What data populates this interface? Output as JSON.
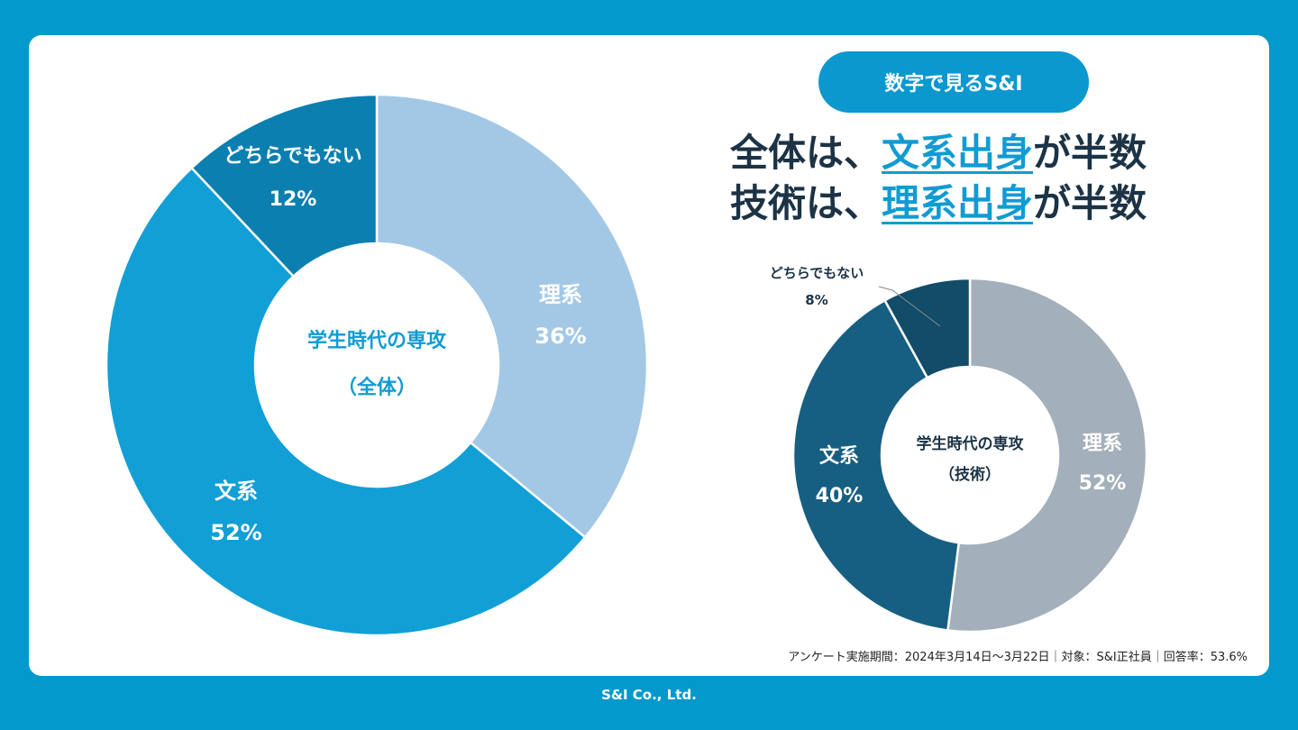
{
  "badge": "数字で見るS&I",
  "headline": {
    "line1": {
      "pre": "全体は、",
      "hl": "文系出身",
      "post": "が半数"
    },
    "line2": {
      "pre": "技術は、",
      "hl": "理系出身",
      "post": "が半数"
    }
  },
  "survey_note": "アンケート実施期間：2024年3月14日〜3月22日｜対象：S&I正社員｜回答率：53.6%",
  "footer": "S&I Co., Ltd.",
  "chart_data": [
    {
      "type": "pie",
      "title": "学生時代の専攻",
      "subtitle": "（全体）",
      "categories": [
        "理系",
        "文系",
        "どちらでもない"
      ],
      "values": [
        36,
        52,
        12
      ],
      "value_labels": [
        "36%",
        "52%",
        "12%"
      ],
      "colors": [
        "#a3c8e6",
        "#129fd6",
        "#0b7fb0"
      ]
    },
    {
      "type": "pie",
      "title": "学生時代の専攻",
      "subtitle": "（技術）",
      "categories": [
        "理系",
        "文系",
        "どちらでもない"
      ],
      "values": [
        52,
        40,
        8
      ],
      "value_labels": [
        "52%",
        "40%",
        "8%"
      ],
      "colors": [
        "#a3afba",
        "#175f82",
        "#114c68"
      ]
    }
  ]
}
